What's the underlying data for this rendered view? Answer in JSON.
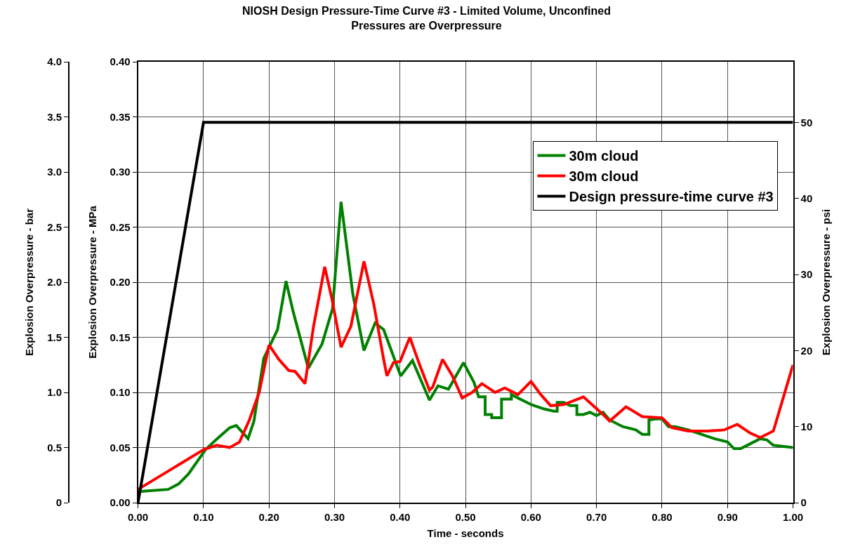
{
  "chart_data": {
    "type": "line",
    "title": "NIOSH Design Pressure-Time Curve #3 - Limited Volume, Unconfined",
    "subtitle": "Pressures are Overpressure",
    "xlabel": "Time - seconds",
    "ylabel": "Explosion Overpressure - MPa",
    "y2label": "Explosion Overpressure - psi",
    "y3label": "Explosion Overpressure - bar",
    "xlim": [
      0,
      1.0
    ],
    "xticks": [
      {
        "value": 0,
        "label": "0.00"
      },
      {
        "value": 0.1,
        "label": "0.10"
      },
      {
        "value": 0.2,
        "label": "0.20"
      },
      {
        "value": 0.3,
        "label": "0.30"
      },
      {
        "value": 0.4,
        "label": "0.40"
      },
      {
        "value": 0.5,
        "label": "0.50"
      },
      {
        "value": 0.6,
        "label": "0.60"
      },
      {
        "value": 0.7,
        "label": "0.70"
      },
      {
        "value": 0.8,
        "label": "0.80"
      },
      {
        "value": 0.9,
        "label": "0.90"
      },
      {
        "value": 1.0,
        "label": "1.00"
      }
    ],
    "ylim": [
      0,
      0.4
    ],
    "yticks": [
      {
        "value": 0,
        "label": "0.00"
      },
      {
        "value": 0.05,
        "label": "0.05"
      },
      {
        "value": 0.1,
        "label": "0.10"
      },
      {
        "value": 0.15,
        "label": "0.15"
      },
      {
        "value": 0.2,
        "label": "0.20"
      },
      {
        "value": 0.25,
        "label": "0.25"
      },
      {
        "value": 0.3,
        "label": "0.30"
      },
      {
        "value": 0.35,
        "label": "0.35"
      },
      {
        "value": 0.4,
        "label": "0.40"
      }
    ],
    "y2lim": [
      0,
      58
    ],
    "y2ticks": [
      0,
      10,
      20,
      30,
      40,
      50
    ],
    "y3lim": [
      0,
      4.0
    ],
    "y3ticks": [
      0,
      0.5,
      {
        "value": 1.0,
        "label": "1.0"
      },
      1.5,
      {
        "value": 2.0,
        "label": "2.0"
      },
      2.5,
      {
        "value": 3.0,
        "label": "3.0"
      },
      3.5,
      {
        "value": 4.0,
        "label": "4.0"
      }
    ],
    "grid": true,
    "legend": "right",
    "marker": "none",
    "line_style": "solid",
    "series": [
      {
        "name": "30m cloud",
        "color": "#008000",
        "x": [
          0,
          0.046,
          0.062,
          0.077,
          0.103,
          0.119,
          0.14,
          0.15,
          0.168,
          0.177,
          0.192,
          0.213,
          0.226,
          0.237,
          0.26,
          0.281,
          0.297,
          0.31,
          0.328,
          0.345,
          0.362,
          0.375,
          0.401,
          0.419,
          0.445,
          0.458,
          0.474,
          0.497,
          0.513,
          0.52,
          0.53,
          0.53,
          0.54,
          0.54,
          0.555,
          0.555,
          0.57,
          0.57,
          0.58,
          0.6,
          0.62,
          0.635,
          0.64,
          0.64,
          0.65,
          0.66,
          0.67,
          0.67,
          0.68,
          0.69,
          0.7,
          0.71,
          0.72,
          0.74,
          0.76,
          0.77,
          0.78,
          0.78,
          0.79,
          0.8,
          0.81,
          0.82,
          0.84,
          0.86,
          0.88,
          0.9,
          0.91,
          0.92,
          0.93,
          0.94,
          0.95,
          0.96,
          0.97,
          1.0
        ],
        "values": [
          0.01,
          0.012,
          0.017,
          0.026,
          0.048,
          0.057,
          0.068,
          0.07,
          0.058,
          0.074,
          0.131,
          0.157,
          0.201,
          0.173,
          0.122,
          0.144,
          0.176,
          0.273,
          0.189,
          0.138,
          0.163,
          0.157,
          0.115,
          0.129,
          0.093,
          0.106,
          0.103,
          0.127,
          0.109,
          0.096,
          0.096,
          0.08,
          0.08,
          0.077,
          0.077,
          0.094,
          0.094,
          0.098,
          0.095,
          0.089,
          0.085,
          0.083,
          0.083,
          0.091,
          0.091,
          0.088,
          0.088,
          0.08,
          0.08,
          0.082,
          0.079,
          0.082,
          0.075,
          0.069,
          0.066,
          0.062,
          0.062,
          0.075,
          0.076,
          0.076,
          0.069,
          0.069,
          0.066,
          0.062,
          0.058,
          0.055,
          0.049,
          0.049,
          0.052,
          0.055,
          0.058,
          0.057,
          0.052,
          0.05
        ]
      },
      {
        "name": "30m cloud",
        "color": "#ff0000",
        "x": [
          0,
          0.05,
          0.1,
          0.12,
          0.14,
          0.155,
          0.17,
          0.185,
          0.2,
          0.215,
          0.23,
          0.24,
          0.255,
          0.268,
          0.285,
          0.296,
          0.31,
          0.325,
          0.345,
          0.36,
          0.375,
          0.38,
          0.39,
          0.4,
          0.415,
          0.43,
          0.445,
          0.45,
          0.465,
          0.48,
          0.495,
          0.51,
          0.525,
          0.545,
          0.56,
          0.58,
          0.6,
          0.615,
          0.63,
          0.65,
          0.68,
          0.71,
          0.72,
          0.745,
          0.77,
          0.8,
          0.815,
          0.84,
          0.87,
          0.895,
          0.915,
          0.935,
          0.95,
          0.97,
          0.99,
          1.0
        ],
        "values": [
          0.012,
          0.03,
          0.048,
          0.052,
          0.05,
          0.055,
          0.075,
          0.1,
          0.143,
          0.13,
          0.12,
          0.119,
          0.108,
          0.16,
          0.214,
          0.185,
          0.141,
          0.16,
          0.219,
          0.18,
          0.13,
          0.115,
          0.127,
          0.128,
          0.15,
          0.125,
          0.102,
          0.105,
          0.13,
          0.115,
          0.095,
          0.1,
          0.108,
          0.1,
          0.104,
          0.098,
          0.11,
          0.098,
          0.088,
          0.089,
          0.096,
          0.08,
          0.074,
          0.087,
          0.078,
          0.077,
          0.068,
          0.065,
          0.065,
          0.066,
          0.071,
          0.063,
          0.059,
          0.065,
          0.105,
          0.125
        ]
      },
      {
        "name": "Design pressure-time curve #3",
        "color": "#000000",
        "x": [
          0,
          0.1,
          1.0
        ],
        "values": [
          0,
          0.345,
          0.345
        ]
      }
    ]
  }
}
